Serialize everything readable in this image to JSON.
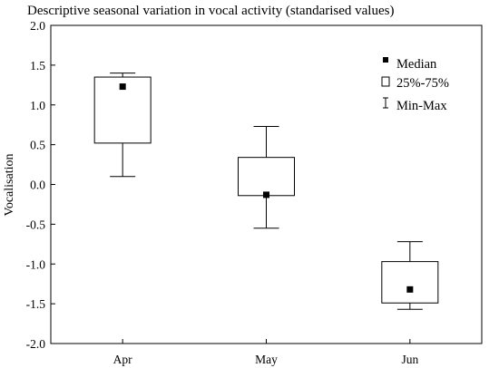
{
  "chart_data": {
    "type": "box",
    "title": "Descriptive seasonal variation in vocal activity (standarised values)",
    "xlabel": "",
    "ylabel": "Vocalisation",
    "categories": [
      "Apr",
      "May",
      "Jun"
    ],
    "ylim": [
      -2.0,
      2.0
    ],
    "yticks": [
      "2.0",
      "1.5",
      "1.0",
      "0.5",
      "0.0",
      "-0.5",
      "-1.0",
      "-1.5",
      "-2.0"
    ],
    "ytick_values": [
      2.0,
      1.5,
      1.0,
      0.5,
      0.0,
      -0.5,
      -1.0,
      -1.5,
      -2.0
    ],
    "grid": false,
    "legend_position": "top-right",
    "legend": {
      "median": "Median",
      "box": "25%-75%",
      "whisker": "Min-Max"
    },
    "boxes": [
      {
        "category": "Apr",
        "min": 0.1,
        "q1": 0.52,
        "median": 1.23,
        "q3": 1.35,
        "max": 1.4
      },
      {
        "category": "May",
        "min": -0.55,
        "q1": -0.14,
        "median": -0.13,
        "q3": 0.34,
        "max": 0.73
      },
      {
        "category": "Jun",
        "min": -1.57,
        "q1": -1.49,
        "median": -1.32,
        "q3": -0.97,
        "max": -0.72
      }
    ]
  }
}
